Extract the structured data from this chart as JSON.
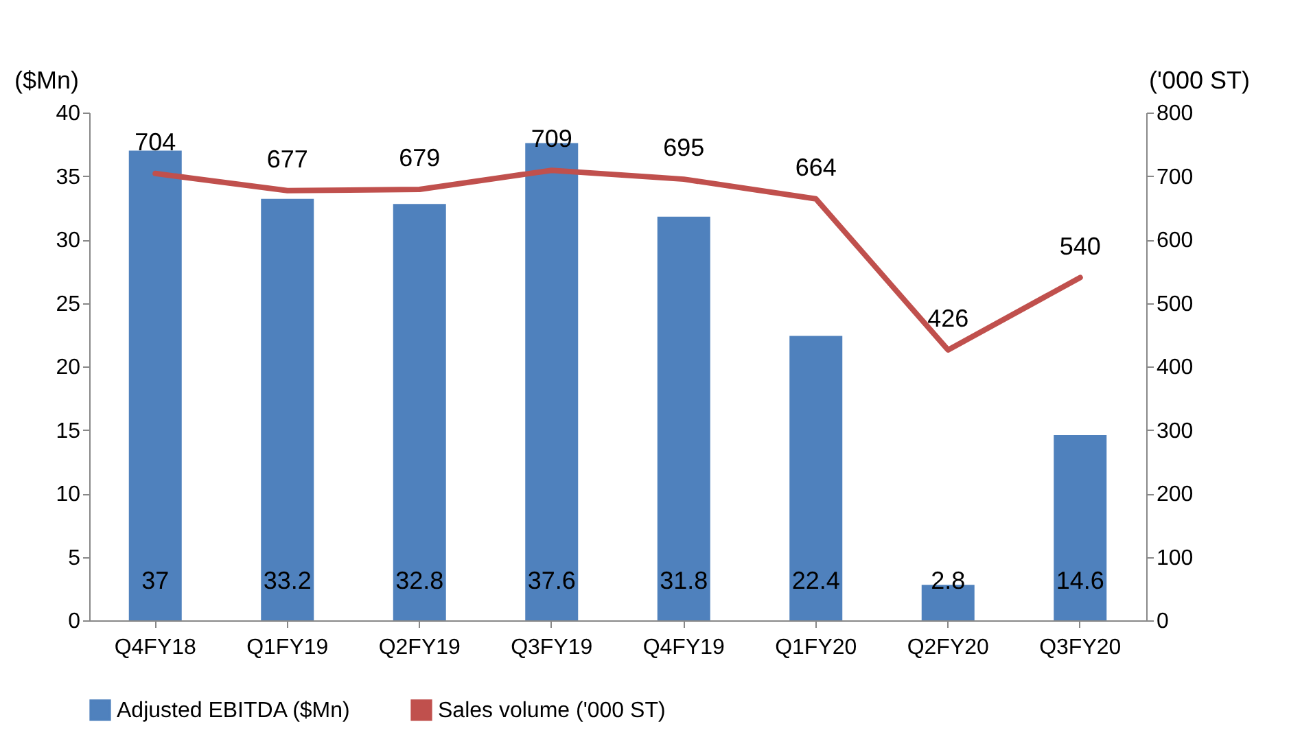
{
  "chart_data": {
    "type": "bar",
    "categories": [
      "Q4FY18",
      "Q1FY19",
      "Q2FY19",
      "Q3FY19",
      "Q4FY19",
      "Q1FY20",
      "Q2FY20",
      "Q3FY20"
    ],
    "ylabel": "($Mn)",
    "y2label": "('000 ST)",
    "ylim": [
      0,
      40
    ],
    "yticks": [
      0,
      5,
      10,
      15,
      20,
      25,
      30,
      35,
      40
    ],
    "y2lim": [
      0,
      800
    ],
    "y2ticks": [
      0,
      100,
      200,
      300,
      400,
      500,
      600,
      700,
      800
    ],
    "data_labels": true,
    "legend": "bottom",
    "grid": false,
    "series": [
      {
        "name": "Adjusted EBITDA ($Mn)",
        "color": "#4f81bd",
        "values": [
          37,
          33.2,
          32.8,
          37.6,
          31.8,
          22.4,
          2.8,
          14.6
        ]
      },
      {
        "name": "Sales volume ('000 ST)",
        "type": "line",
        "axis": "y2",
        "color": "#c0504d",
        "values": [
          704,
          677,
          679,
          709,
          695,
          664,
          426,
          540
        ]
      }
    ]
  }
}
